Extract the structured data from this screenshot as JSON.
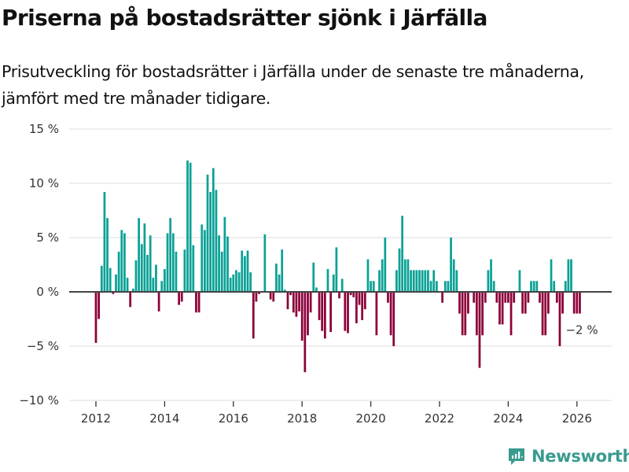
{
  "header": {
    "title": "Priserna på bostadsrätter sjönk i Järfälla",
    "subtitle": "Prisutveckling för bostadsrätter i Järfälla under de senaste tre månaderna, jämfört med tre månader tidigare."
  },
  "brand": {
    "name": "Newsworthy",
    "icon": "bar-chart-speech-bubble-icon",
    "color": "#3a9b8f"
  },
  "colors": {
    "positive": "#0aa195",
    "negative": "#8c0039",
    "zero_line": "#444444",
    "grid": "#e3e3e3"
  },
  "chart_data": {
    "type": "bar",
    "title": "Priserna på bostadsrätter sjönk i Järfälla",
    "subtitle": "Prisutveckling för bostadsrätter i Järfälla under de senaste tre månaderna, jämfört med tre månader tidigare.",
    "xlabel": "",
    "ylabel": "",
    "start": "2012-01",
    "frequency": "monthly",
    "ylim": [
      -10,
      15
    ],
    "xlim": [
      2011.25,
      2026.6
    ],
    "yticks": [
      -10,
      -5,
      0,
      5,
      10,
      15
    ],
    "ytick_labels": [
      "−10 %",
      "−5 %",
      "0 %",
      "5 %",
      "10 %",
      "15 %"
    ],
    "xticks": [
      2012,
      2014,
      2016,
      2018,
      2020,
      2022,
      2024,
      2026
    ],
    "xtick_labels": [
      "2012",
      "2014",
      "2016",
      "2018",
      "2020",
      "2022",
      "2024",
      "2026"
    ],
    "grid": true,
    "legend": "none",
    "end_annotation": "−2 %",
    "values": [
      -4.7,
      -2.5,
      2.4,
      9.2,
      6.8,
      2.2,
      -0.2,
      1.6,
      3.7,
      5.7,
      5.4,
      1.3,
      -1.4,
      0.3,
      2.9,
      6.8,
      4.4,
      6.3,
      3.4,
      5.2,
      1.3,
      2.5,
      -1.8,
      1.0,
      2.1,
      5.4,
      6.8,
      5.4,
      3.7,
      -1.2,
      -0.9,
      3.9,
      12.1,
      11.9,
      4.3,
      -1.9,
      -1.9,
      6.2,
      5.7,
      10.8,
      9.2,
      11.4,
      9.4,
      5.2,
      3.7,
      6.9,
      5.1,
      1.3,
      1.6,
      2.0,
      1.8,
      3.8,
      3.3,
      3.8,
      1.8,
      -4.3,
      -0.9,
      -0.2,
      0,
      5.3,
      0,
      -0.7,
      -0.9,
      2.6,
      1.6,
      3.9,
      0.2,
      -1.6,
      -0.3,
      -1.9,
      -2.3,
      -1.8,
      -4.5,
      -7.4,
      -4.0,
      -1.9,
      2.7,
      0.4,
      -2.6,
      -3.6,
      -4.3,
      2.1,
      -3.7,
      1.6,
      4.1,
      -0.6,
      1.2,
      -3.6,
      -3.8,
      -0.3,
      -0.5,
      -2.9,
      -1.2,
      -2.6,
      -1.6,
      3.0,
      1.0,
      1.0,
      -4.0,
      2.0,
      3.0,
      5.0,
      -1.0,
      -4.0,
      -5.0,
      2.0,
      4.0,
      7.0,
      3.0,
      3.0,
      2.0,
      2.0,
      2.0,
      2.0,
      2.0,
      2.0,
      2.0,
      1.0,
      2.0,
      1.0,
      0,
      -1.0,
      1.0,
      1.0,
      5.0,
      3.0,
      2.0,
      -2.0,
      -4.0,
      -4.0,
      -2.0,
      0,
      -1.0,
      -4.0,
      -7.0,
      -4.0,
      -1.0,
      2.0,
      3.0,
      1.0,
      -1.0,
      -3.0,
      -3.0,
      -1.0,
      -1.0,
      -4.0,
      -1.0,
      0,
      2.0,
      -2.0,
      -2.0,
      -1.0,
      1.0,
      1.0,
      1.0,
      -1.0,
      -4.0,
      -4.0,
      -2.0,
      3.0,
      1.0,
      -1.0,
      -5.0,
      -2.0,
      1.0,
      3.0,
      3.0,
      -2.0,
      -2.0,
      -2.0
    ]
  }
}
